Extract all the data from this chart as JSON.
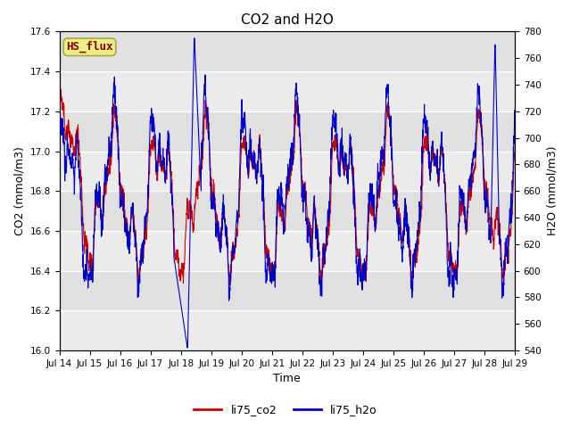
{
  "title": "CO2 and H2O",
  "xlabel": "Time",
  "ylabel_left": "CO2 (mmol/m3)",
  "ylabel_right": "H2O (mmol/m3)",
  "ylim_left": [
    16.0,
    17.6
  ],
  "ylim_right": [
    540,
    780
  ],
  "yticks_left": [
    16.0,
    16.2,
    16.4,
    16.6,
    16.8,
    17.0,
    17.2,
    17.4,
    17.6
  ],
  "yticks_right": [
    540,
    560,
    580,
    600,
    620,
    640,
    660,
    680,
    700,
    720,
    740,
    760,
    780
  ],
  "xtick_labels": [
    "Jul 14",
    "Jul 15",
    "Jul 16",
    "Jul 17",
    "Jul 18",
    "Jul 19",
    "Jul 20",
    "Jul 21",
    "Jul 22",
    "Jul 23",
    "Jul 24",
    "Jul 25",
    "Jul 26",
    "Jul 27",
    "Jul 28",
    "Jul 29"
  ],
  "color_co2": "#cc0000",
  "color_h2o": "#0000cc",
  "line_width": 0.8,
  "legend_labels": [
    "li75_co2",
    "li75_h2o"
  ],
  "annotation_text": "HS_flux",
  "annotation_bg": "#eeee88",
  "annotation_fg": "#880000",
  "bg_color": "#e0e0e0",
  "n_points": 2000,
  "seed": 42
}
